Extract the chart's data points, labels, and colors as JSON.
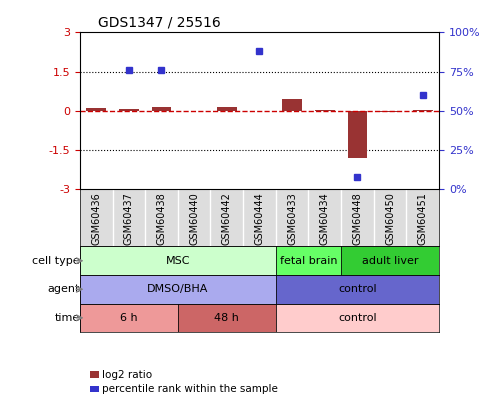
{
  "title": "GDS1347 / 25516",
  "samples": [
    "GSM60436",
    "GSM60437",
    "GSM60438",
    "GSM60440",
    "GSM60442",
    "GSM60444",
    "GSM60433",
    "GSM60434",
    "GSM60448",
    "GSM60450",
    "GSM60451"
  ],
  "log2_ratio": [
    0.12,
    0.08,
    0.15,
    0.0,
    0.13,
    0.0,
    0.45,
    0.05,
    -1.8,
    -0.05,
    0.03
  ],
  "percentile_rank": [
    null,
    76,
    76,
    null,
    null,
    88,
    null,
    null,
    8,
    null,
    60
  ],
  "ylim_left": [
    -3,
    3
  ],
  "ylim_right": [
    0,
    100
  ],
  "yticks_left": [
    -3,
    -1.5,
    0,
    1.5,
    3
  ],
  "yticks_right": [
    0,
    25,
    50,
    75,
    100
  ],
  "yticklabels_right": [
    "0%",
    "25%",
    "50%",
    "75%",
    "100%"
  ],
  "hline_y": 0,
  "dotted_lines": [
    -1.5,
    1.5
  ],
  "bar_color": "#993333",
  "dot_color": "#3333cc",
  "hline_color": "#cc0000",
  "cell_type_groups": [
    {
      "label": "MSC",
      "start": 0,
      "end": 6,
      "color": "#ccffcc",
      "text_color": "#000000"
    },
    {
      "label": "fetal brain",
      "start": 6,
      "end": 8,
      "color": "#66ff66",
      "text_color": "#000000"
    },
    {
      "label": "adult liver",
      "start": 8,
      "end": 11,
      "color": "#33cc33",
      "text_color": "#000000"
    }
  ],
  "agent_groups": [
    {
      "label": "DMSO/BHA",
      "start": 0,
      "end": 6,
      "color": "#aaaaee",
      "text_color": "#000000"
    },
    {
      "label": "control",
      "start": 6,
      "end": 11,
      "color": "#6666cc",
      "text_color": "#000000"
    }
  ],
  "time_groups": [
    {
      "label": "6 h",
      "start": 0,
      "end": 3,
      "color": "#ee9999",
      "text_color": "#000000"
    },
    {
      "label": "48 h",
      "start": 3,
      "end": 6,
      "color": "#cc6666",
      "text_color": "#000000"
    },
    {
      "label": "control",
      "start": 6,
      "end": 11,
      "color": "#ffcccc",
      "text_color": "#000000"
    }
  ],
  "legend_items": [
    {
      "label": "log2 ratio",
      "color": "#993333"
    },
    {
      "label": "percentile rank within the sample",
      "color": "#3333cc"
    }
  ],
  "row_labels": [
    "cell type",
    "agent",
    "time"
  ],
  "bg_color": "#ffffff",
  "plot_bg": "#ffffff",
  "grid_color": "#000000",
  "tick_label_color_left": "#cc0000",
  "tick_label_color_right": "#3333cc"
}
